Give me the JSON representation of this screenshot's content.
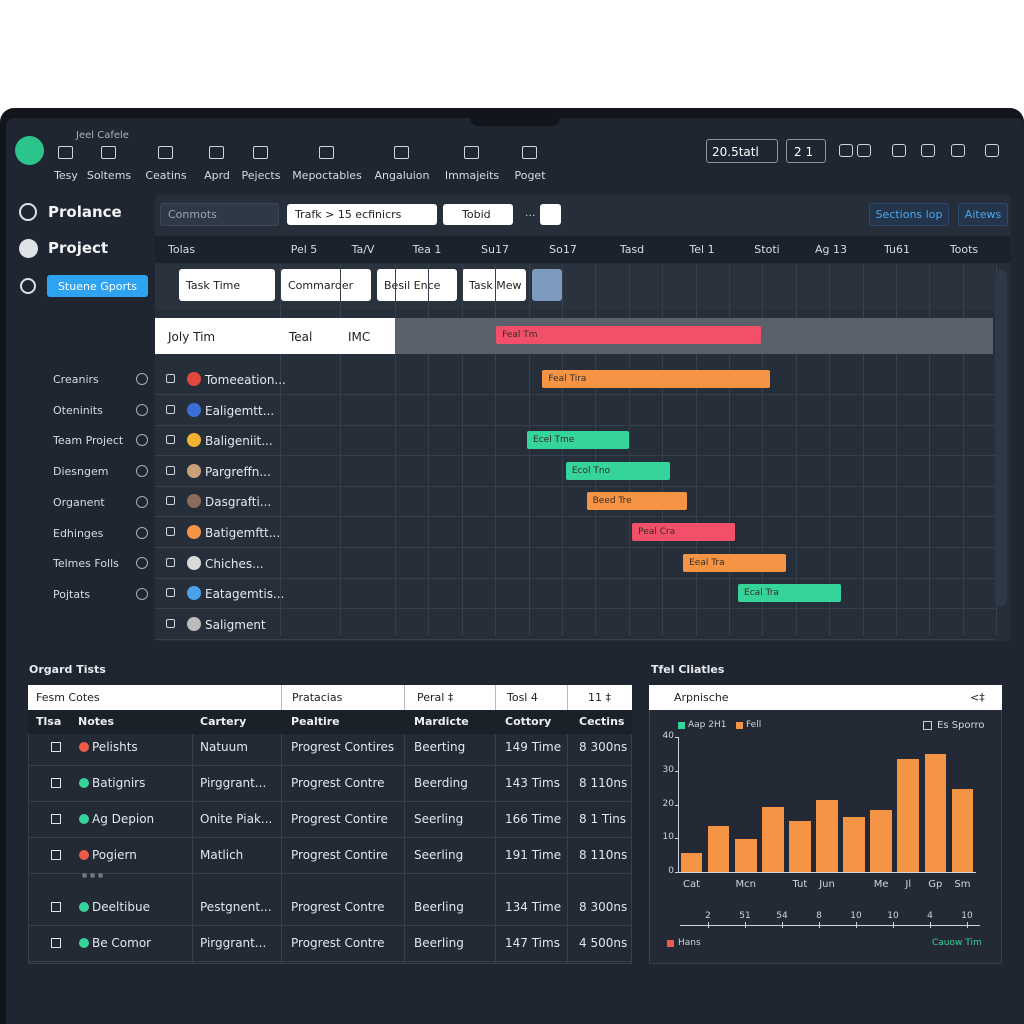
{
  "toolbar": {
    "brand": "Jeel Cafele",
    "items": [
      "Tesy",
      "Soltems",
      "Ceatins",
      "Aprd",
      "Pejects",
      "Mepoctables",
      "Angaluion",
      "Immajeits",
      "Poget"
    ],
    "range": "20.5tatl",
    "page": "2 1"
  },
  "sidebar": {
    "title": "Prolance",
    "project": "Project",
    "button": "Stuene Gports",
    "items": [
      "Creanirs",
      "Oteninits",
      "Team Project",
      "Diesngem",
      "Organent",
      "Edhinges",
      "Telmes Folls",
      "Pojtats"
    ]
  },
  "gantt": {
    "search": "Conmots",
    "breadcrumb": "Trafk > 15 ecfinicrs",
    "filter": "Tobid",
    "more": "...",
    "actions": [
      "Sections lop",
      "Aitews"
    ],
    "columns": [
      "Tolas",
      "Pel 5",
      "Ta/V",
      "Tea 1",
      "Su17",
      "So17",
      "Tasd",
      "Tel 1",
      "Stoti",
      "Ag 13",
      "Tu61",
      "Toots"
    ],
    "filters": [
      "Task Time",
      "Commarder",
      "Besil Ence",
      "Task Mew"
    ],
    "selected": {
      "cells": [
        "Joly Tim",
        "Teal",
        "IMC"
      ],
      "bar": {
        "label": "Feal Tm",
        "color": "#f2506a",
        "start": 1.51,
        "end": 5.46
      }
    },
    "rows": [
      {
        "name": "Tomeeation...",
        "icon": "#e0483e",
        "bar": {
          "label": "Feal Tira",
          "color": "#f59445",
          "start": 2.2,
          "end": 5.6
        }
      },
      {
        "name": "Ealigemtt...",
        "icon": "#3b6fd8",
        "bar": null
      },
      {
        "name": "Baligeniit...",
        "icon": "#f2b233",
        "bar": {
          "label": "Ecel Tme",
          "color": "#35d49a",
          "start": 1.97,
          "end": 3.5
        }
      },
      {
        "name": "Pargreffn...",
        "icon": "#c9a07a",
        "bar": {
          "label": "Ecol Tno",
          "color": "#35d49a",
          "start": 2.55,
          "end": 4.1
        }
      },
      {
        "name": "Dasgrafti...",
        "icon": "#8a6a5a",
        "bar": {
          "label": "Beed Tre",
          "color": "#f59445",
          "start": 2.86,
          "end": 4.36
        }
      },
      {
        "name": "Batigemftt...",
        "icon": "#f59445",
        "bar": {
          "label": "Peal Cra",
          "color": "#f2506a",
          "start": 3.54,
          "end": 5.07
        }
      },
      {
        "name": "Chiches...",
        "icon": "#d9d9d9",
        "bar": {
          "label": "Eeal Tra",
          "color": "#f59445",
          "start": 4.3,
          "end": 5.84
        }
      },
      {
        "name": "Eatagemtis...",
        "icon": "#4aa3e8",
        "bar": {
          "label": "Ecal Tra",
          "color": "#35d49a",
          "start": 5.12,
          "end": 6.66
        }
      },
      {
        "name": "Saligment",
        "icon": "#bbbbbb",
        "bar": null
      }
    ]
  },
  "table": {
    "title": "Orgard Tists",
    "filters": [
      "Fesm Cotes",
      "Pratacias",
      "Peral ‡",
      "Tosl 4",
      "11 ‡"
    ],
    "headers": [
      "Tlsa",
      "Notes",
      "Cartery",
      "Pealtire",
      "Mardicte",
      "Cottory",
      "Cectins"
    ],
    "rows": [
      {
        "color": "#f05a4a",
        "cells": [
          "Pelishts",
          "Natuum",
          "Progrest Contires",
          "Beerting",
          "149 Time",
          "8 300ns"
        ]
      },
      {
        "color": "#35d49a",
        "cells": [
          "Batignirs",
          "Pirggrant...",
          "Progrest Contre",
          "Beerding",
          "143 Tims",
          "8 110ns"
        ]
      },
      {
        "color": "#35d49a",
        "cells": [
          "Ag Depion",
          "Onite Piak...",
          "Progrest Contire",
          "Seerling",
          "166 Time",
          "8 1 Tins"
        ]
      },
      {
        "color": "#f05a4a",
        "cells": [
          "Pogiern",
          "Matlich",
          "Progrest Contire",
          "Seerling",
          "191 Time",
          "8 110ns"
        ]
      },
      {
        "color": "#35d49a",
        "cells": [
          "Deeltibue",
          "Pestgnent...",
          "Progrest Contre",
          "Beerling",
          "134 Time",
          "8 300ns"
        ]
      },
      {
        "color": "#35d49a",
        "cells": [
          "Be Comor",
          "Pirggrant...",
          "Progrest Contre",
          "Beerling",
          "147 Tims",
          "4 500ns"
        ]
      }
    ]
  },
  "chart_panel": {
    "title": "Tfel Cliatles",
    "header": "Arpnische",
    "header_right": "<‡",
    "legend": [
      {
        "name": "Aap 2H1",
        "color": "#35d49a"
      },
      {
        "name": "Fell",
        "color": "#f59445"
      }
    ],
    "toggle": "Es Sporro",
    "slider_ticks": [
      "2",
      "51",
      "54",
      "8",
      "10",
      "10",
      "4",
      "10"
    ],
    "footer_left": "Hans",
    "footer_right": "Cauow Tim"
  },
  "chart_data": {
    "type": "bar",
    "color": "#f59445",
    "categories": [
      "Cat",
      null,
      "Mcn",
      null,
      "Tut",
      "Jun",
      null,
      "Me",
      "Jl",
      "Gp",
      "Sm"
    ],
    "values": [
      5.6,
      13.6,
      9.8,
      19.3,
      15.1,
      21.3,
      16.3,
      18.4,
      33.5,
      34.9,
      24.6
    ],
    "ylim": [
      0,
      40
    ],
    "yticks": [
      0,
      10,
      20,
      30,
      40
    ]
  }
}
